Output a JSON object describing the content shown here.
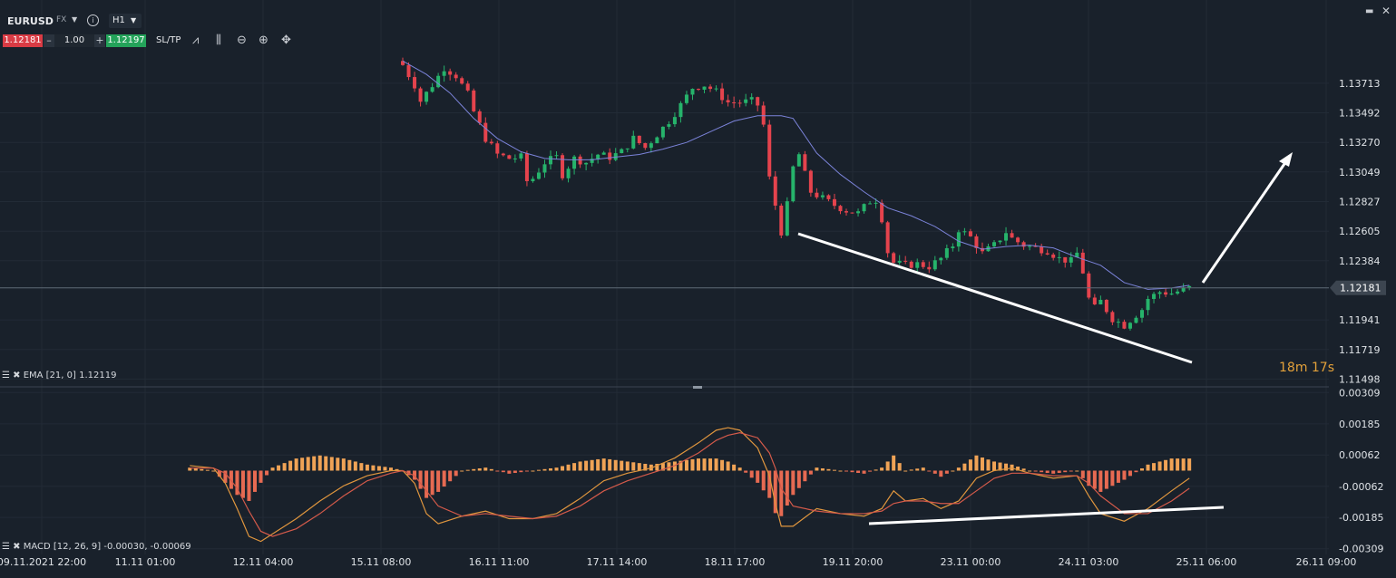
{
  "toolbar": {
    "symbol": "EURUSD",
    "market": "FX",
    "timeframe": "H1",
    "sell_price": "1.12181",
    "volume": "1.00",
    "buy_price": "1.12197",
    "sltp_label": "SL/TP",
    "minus": "–",
    "plus": "+"
  },
  "indicators": {
    "ema_label": "EMA [21, 0] 1.12119",
    "macd_label": "MACD [12, 26, 9] -0.00030, -0.00069"
  },
  "timer": "18m 17s",
  "colors": {
    "background": "#19212b",
    "bull": "#26b36b",
    "bear": "#e5434d",
    "ema": "#7b83d9",
    "histogram_pos": "#f0a356",
    "histogram_neg": "#e66a52",
    "macd_line": "#e0963e",
    "signal_line": "#d45a4a",
    "annotation": "#ffffff"
  },
  "chart_data": [
    {
      "type": "candlestick",
      "title": "",
      "instrument": "EURUSD",
      "interval": "H1",
      "y_ticks": [
        "1.13713",
        "1.13492",
        "1.13270",
        "1.13049",
        "1.12827",
        "1.12605",
        "1.12384",
        "1.11941",
        "1.11719",
        "1.11498"
      ],
      "ylim": [
        1.1148,
        1.1395
      ],
      "current_price": "1.12181",
      "x_ticks": [
        "09.11.2021 22:00",
        "11.11 01:00",
        "12.11 04:00",
        "15.11 08:00",
        "16.11 11:00",
        "17.11 14:00",
        "18.11 17:00",
        "19.11 20:00",
        "23.11 00:00",
        "24.11 03:00",
        "25.11 06:00",
        "26.11 09:00"
      ],
      "series": [
        {
          "name": "EMA [21, 0]",
          "values": [
            [
              0,
              1.1388
            ],
            [
              4,
              1.1378
            ],
            [
              8,
              1.1364
            ],
            [
              12,
              1.1345
            ],
            [
              16,
              1.133
            ],
            [
              20,
              1.132
            ],
            [
              24,
              1.1315
            ],
            [
              28,
              1.1314
            ],
            [
              32,
              1.1314
            ],
            [
              36,
              1.1316
            ],
            [
              40,
              1.1318
            ],
            [
              44,
              1.1322
            ],
            [
              48,
              1.1327
            ],
            [
              52,
              1.1335
            ],
            [
              56,
              1.1343
            ],
            [
              60,
              1.1347
            ],
            [
              64,
              1.1347
            ],
            [
              66,
              1.1345
            ],
            [
              70,
              1.1319
            ],
            [
              74,
              1.1303
            ],
            [
              78,
              1.129
            ],
            [
              82,
              1.1278
            ],
            [
              86,
              1.1272
            ],
            [
              90,
              1.1264
            ],
            [
              94,
              1.1253
            ],
            [
              98,
              1.1247
            ],
            [
              102,
              1.1249
            ],
            [
              106,
              1.125
            ],
            [
              110,
              1.1248
            ],
            [
              114,
              1.1241
            ],
            [
              118,
              1.1235
            ],
            [
              122,
              1.1222
            ],
            [
              126,
              1.1217
            ],
            [
              130,
              1.1218
            ],
            [
              133,
              1.122
            ]
          ]
        }
      ],
      "price_path": [
        [
          0,
          1.1385
        ],
        [
          2,
          1.137
        ],
        [
          3,
          1.1358
        ],
        [
          5,
          1.137
        ],
        [
          7,
          1.1383
        ],
        [
          9,
          1.1377
        ],
        [
          11,
          1.1363
        ],
        [
          12,
          1.135
        ],
        [
          14,
          1.133
        ],
        [
          16,
          1.1318
        ],
        [
          18,
          1.1315
        ],
        [
          20,
          1.1316
        ],
        [
          21,
          1.1298
        ],
        [
          22,
          1.13
        ],
        [
          24,
          1.1312
        ],
        [
          26,
          1.1316
        ],
        [
          27,
          1.1303
        ],
        [
          29,
          1.1315
        ],
        [
          31,
          1.1312
        ],
        [
          33,
          1.1318
        ],
        [
          35,
          1.1316
        ],
        [
          37,
          1.132
        ],
        [
          39,
          1.133
        ],
        [
          41,
          1.1323
        ],
        [
          43,
          1.1333
        ],
        [
          45,
          1.1343
        ],
        [
          47,
          1.1355
        ],
        [
          49,
          1.1368
        ],
        [
          51,
          1.137
        ],
        [
          53,
          1.1365
        ],
        [
          55,
          1.1357
        ],
        [
          57,
          1.1357
        ],
        [
          59,
          1.1358
        ],
        [
          60,
          1.1355
        ],
        [
          61,
          1.134
        ],
        [
          62,
          1.13
        ],
        [
          64,
          1.126
        ],
        [
          65,
          1.128
        ],
        [
          66,
          1.1308
        ],
        [
          67,
          1.1318
        ],
        [
          68,
          1.1303
        ],
        [
          69,
          1.129
        ],
        [
          71,
          1.1285
        ],
        [
          73,
          1.128
        ],
        [
          75,
          1.1276
        ],
        [
          77,
          1.1274
        ],
        [
          79,
          1.1283
        ],
        [
          80,
          1.1284
        ],
        [
          81,
          1.127
        ],
        [
          82,
          1.1245
        ],
        [
          83,
          1.1237
        ],
        [
          85,
          1.1235
        ],
        [
          87,
          1.1236
        ],
        [
          89,
          1.1234
        ],
        [
          91,
          1.124
        ],
        [
          93,
          1.125
        ],
        [
          94,
          1.1262
        ],
        [
          96,
          1.1256
        ],
        [
          98,
          1.1244
        ],
        [
          100,
          1.125
        ],
        [
          102,
          1.126
        ],
        [
          103,
          1.1255
        ],
        [
          105,
          1.125
        ],
        [
          107,
          1.1248
        ],
        [
          109,
          1.1246
        ],
        [
          111,
          1.124
        ],
        [
          113,
          1.1238
        ],
        [
          114,
          1.1244
        ],
        [
          115,
          1.123
        ],
        [
          116,
          1.121
        ],
        [
          117,
          1.1203
        ],
        [
          118,
          1.1208
        ],
        [
          120,
          1.1195
        ],
        [
          122,
          1.119
        ],
        [
          124,
          1.1198
        ],
        [
          125,
          1.1202
        ],
        [
          126,
          1.121
        ],
        [
          128,
          1.1215
        ],
        [
          130,
          1.1214
        ],
        [
          133,
          1.1218
        ]
      ]
    },
    {
      "type": "bar",
      "title": "MACD [12, 26, 9]",
      "values_text": "-0.00030, -0.00069",
      "y_ticks": [
        "0.00309",
        "0.00185",
        "0.00062",
        "-0.00062",
        "-0.00185",
        "-0.00309"
      ],
      "ylim": [
        -0.0031,
        0.0031
      ],
      "series": [
        {
          "name": "MACD",
          "values": [
            [
              -36,
              0.0002
            ],
            [
              -32,
              0.0001
            ],
            [
              -30,
              -0.0005
            ],
            [
              -28,
              -0.0015
            ],
            [
              -26,
              -0.0026
            ],
            [
              -24,
              -0.0028
            ],
            [
              -22,
              -0.0025
            ],
            [
              -18,
              -0.0019
            ],
            [
              -14,
              -0.0012
            ],
            [
              -10,
              -0.0006
            ],
            [
              -6,
              -0.0002
            ],
            [
              -2,
              0.0
            ],
            [
              0,
              0.0
            ],
            [
              2,
              -0.0005
            ],
            [
              4,
              -0.0017
            ],
            [
              6,
              -0.0021
            ],
            [
              10,
              -0.0018
            ],
            [
              14,
              -0.0016
            ],
            [
              18,
              -0.0019
            ],
            [
              22,
              -0.0019
            ],
            [
              26,
              -0.0017
            ],
            [
              30,
              -0.0011
            ],
            [
              34,
              -0.0004
            ],
            [
              38,
              -0.0001
            ],
            [
              42,
              0.0001
            ],
            [
              46,
              0.0005
            ],
            [
              50,
              0.0011
            ],
            [
              53,
              0.0016
            ],
            [
              55,
              0.0017
            ],
            [
              57,
              0.0016
            ],
            [
              60,
              0.0009
            ],
            [
              62,
              -0.0002
            ],
            [
              63,
              -0.0013
            ],
            [
              64,
              -0.0022
            ],
            [
              66,
              -0.0022
            ],
            [
              70,
              -0.0015
            ],
            [
              74,
              -0.0017
            ],
            [
              78,
              -0.0018
            ],
            [
              81,
              -0.0015
            ],
            [
              83,
              -0.0008
            ],
            [
              85,
              -0.0012
            ],
            [
              88,
              -0.0011
            ],
            [
              91,
              -0.0015
            ],
            [
              94,
              -0.0012
            ],
            [
              97,
              -0.0003
            ],
            [
              100,
              0.0
            ],
            [
              103,
              0.0001
            ],
            [
              106,
              -0.0001
            ],
            [
              110,
              -0.0003
            ],
            [
              114,
              -0.0002
            ],
            [
              116,
              -0.001
            ],
            [
              118,
              -0.0017
            ],
            [
              122,
              -0.002
            ],
            [
              126,
              -0.0015
            ],
            [
              130,
              -0.0008
            ],
            [
              133,
              -0.0003
            ]
          ]
        },
        {
          "name": "Signal",
          "values": [
            [
              -36,
              0.0001
            ],
            [
              -32,
              0.0001
            ],
            [
              -30,
              -0.0001
            ],
            [
              -28,
              -0.0007
            ],
            [
              -26,
              -0.0016
            ],
            [
              -24,
              -0.0024
            ],
            [
              -22,
              -0.0026
            ],
            [
              -18,
              -0.0023
            ],
            [
              -14,
              -0.0017
            ],
            [
              -10,
              -0.001
            ],
            [
              -6,
              -0.0004
            ],
            [
              -2,
              -0.0001
            ],
            [
              0,
              0.0
            ],
            [
              2,
              -0.0002
            ],
            [
              4,
              -0.0008
            ],
            [
              6,
              -0.0014
            ],
            [
              10,
              -0.0018
            ],
            [
              14,
              -0.0017
            ],
            [
              18,
              -0.0018
            ],
            [
              22,
              -0.0019
            ],
            [
              26,
              -0.0018
            ],
            [
              30,
              -0.0014
            ],
            [
              34,
              -0.0008
            ],
            [
              38,
              -0.0004
            ],
            [
              42,
              -0.0001
            ],
            [
              46,
              0.0002
            ],
            [
              50,
              0.0007
            ],
            [
              53,
              0.0012
            ],
            [
              55,
              0.0014
            ],
            [
              57,
              0.0015
            ],
            [
              60,
              0.0013
            ],
            [
              62,
              0.0007
            ],
            [
              63,
              0.0001
            ],
            [
              64,
              -0.0007
            ],
            [
              66,
              -0.0014
            ],
            [
              70,
              -0.0016
            ],
            [
              74,
              -0.0017
            ],
            [
              78,
              -0.0017
            ],
            [
              81,
              -0.0016
            ],
            [
              83,
              -0.0013
            ],
            [
              85,
              -0.0012
            ],
            [
              88,
              -0.0012
            ],
            [
              91,
              -0.0013
            ],
            [
              94,
              -0.0013
            ],
            [
              97,
              -0.0008
            ],
            [
              100,
              -0.0003
            ],
            [
              103,
              -0.0001
            ],
            [
              106,
              -0.0001
            ],
            [
              110,
              -0.0002
            ],
            [
              114,
              -0.0002
            ],
            [
              116,
              -0.0005
            ],
            [
              118,
              -0.001
            ],
            [
              122,
              -0.0017
            ],
            [
              126,
              -0.0017
            ],
            [
              130,
              -0.0012
            ],
            [
              133,
              -0.0007
            ]
          ]
        }
      ]
    }
  ]
}
